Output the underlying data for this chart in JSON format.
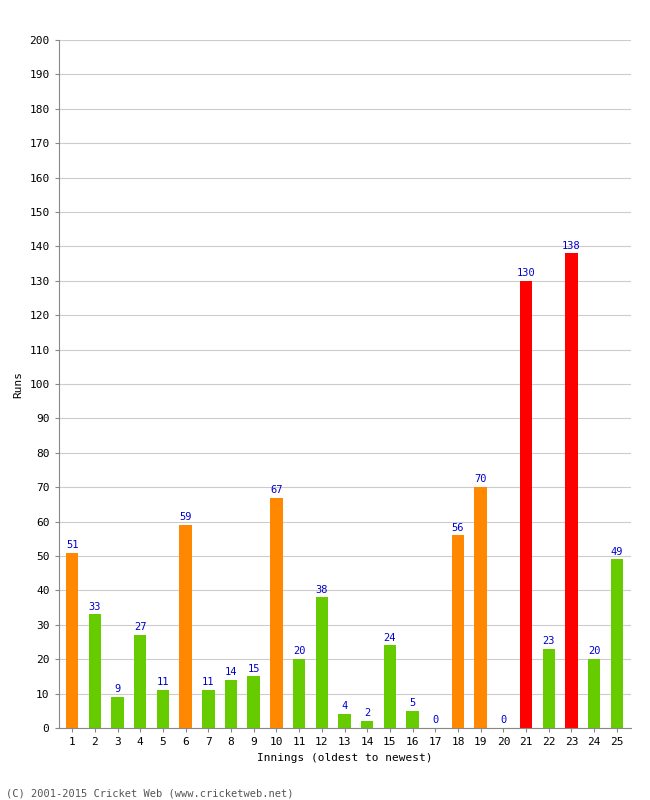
{
  "xlabel": "Innings (oldest to newest)",
  "ylabel": "Runs",
  "values": [
    51,
    33,
    9,
    27,
    11,
    59,
    11,
    14,
    15,
    67,
    20,
    38,
    4,
    2,
    24,
    5,
    0,
    56,
    70,
    0,
    130,
    23,
    138,
    20,
    49
  ],
  "colors": [
    "#ff8800",
    "#66cc00",
    "#66cc00",
    "#66cc00",
    "#66cc00",
    "#ff8800",
    "#66cc00",
    "#66cc00",
    "#66cc00",
    "#ff8800",
    "#66cc00",
    "#66cc00",
    "#66cc00",
    "#66cc00",
    "#66cc00",
    "#66cc00",
    "#66cc00",
    "#ff8800",
    "#ff8800",
    "#66cc00",
    "#ff0000",
    "#66cc00",
    "#ff0000",
    "#66cc00",
    "#66cc00"
  ],
  "categories": [
    "1",
    "2",
    "3",
    "4",
    "5",
    "6",
    "7",
    "8",
    "9",
    "10",
    "11",
    "12",
    "13",
    "14",
    "15",
    "16",
    "17",
    "18",
    "19",
    "20",
    "21",
    "22",
    "23",
    "24",
    "25"
  ],
  "ylim": [
    0,
    200
  ],
  "yticks": [
    0,
    10,
    20,
    30,
    40,
    50,
    60,
    70,
    80,
    90,
    100,
    110,
    120,
    130,
    140,
    150,
    160,
    170,
    180,
    190,
    200
  ],
  "label_color": "#0000cc",
  "bg_color": "#ffffff",
  "grid_color": "#cccccc",
  "footer": "(C) 2001-2015 Cricket Web (www.cricketweb.net)",
  "bar_width": 0.55
}
